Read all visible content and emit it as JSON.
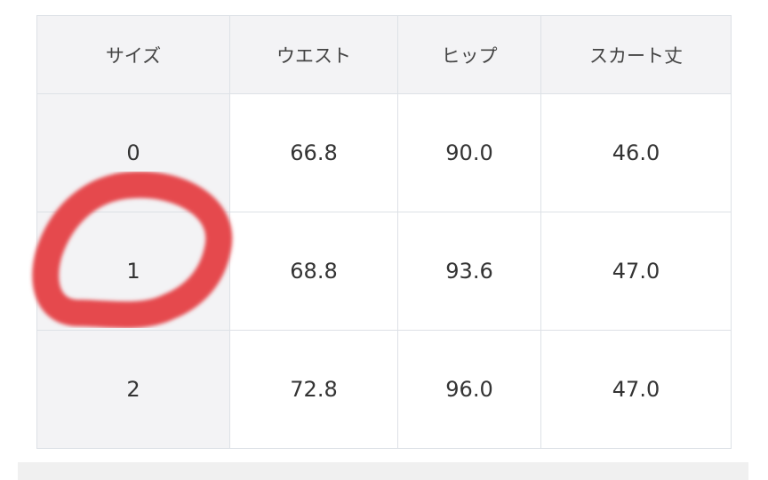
{
  "table": {
    "headers": [
      "サイズ",
      "ウエスト",
      "ヒップ",
      "スカート丈"
    ],
    "rows": [
      [
        "0",
        "66.8",
        "90.0",
        "46.0"
      ],
      [
        "1",
        "68.8",
        "93.6",
        "47.0"
      ],
      [
        "2",
        "72.8",
        "96.0",
        "47.0"
      ]
    ]
  },
  "annotation": {
    "type": "hand-drawn-circle",
    "color": "#e5484d",
    "target_row": "1"
  }
}
